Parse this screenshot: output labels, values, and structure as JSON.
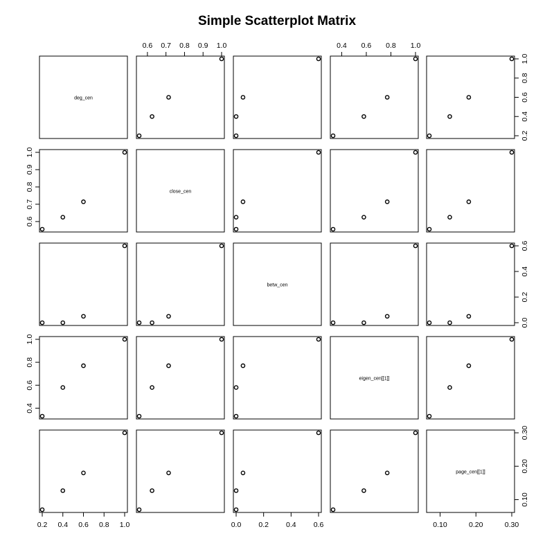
{
  "chart_data": {
    "type": "scatter-matrix",
    "title": "Simple Scatterplot Matrix",
    "variables": [
      {
        "name": "deg_cen",
        "values": [
          0.2,
          0.4,
          0.6,
          1.0
        ],
        "lim": [
          0.2,
          1.0
        ],
        "ticks": [
          0.2,
          0.4,
          0.6,
          0.8,
          1.0
        ],
        "tick_labels": [
          "0.2",
          "0.4",
          "0.6",
          "0.8",
          "1.0"
        ]
      },
      {
        "name": "close_cen",
        "values": [
          0.5556,
          0.625,
          0.7143,
          1.0
        ],
        "lim": [
          0.5556,
          1.0
        ],
        "ticks": [
          0.6,
          0.7,
          0.8,
          0.9,
          1.0
        ],
        "tick_labels": [
          "0.6",
          "0.7",
          "0.8",
          "0.9",
          "1.0"
        ]
      },
      {
        "name": "betw_cen",
        "values": [
          0.0,
          0.0,
          0.05,
          0.6
        ],
        "lim": [
          0.0,
          0.6
        ],
        "ticks": [
          0.0,
          0.2,
          0.4,
          0.6
        ],
        "tick_labels": [
          "0.0",
          "0.2",
          "0.4",
          "0.6"
        ]
      },
      {
        "name": "eigen_cen[[1]]",
        "values": [
          0.33,
          0.58,
          0.77,
          1.0
        ],
        "lim": [
          0.33,
          1.0
        ],
        "ticks": [
          0.4,
          0.6,
          0.8,
          1.0
        ],
        "tick_labels": [
          "0.4",
          "0.6",
          "0.8",
          "1.0"
        ]
      },
      {
        "name": "page_cen[[1]]",
        "values": [
          0.07,
          0.127,
          0.18,
          0.3
        ],
        "lim": [
          0.07,
          0.3
        ],
        "ticks": [
          0.1,
          0.2,
          0.3
        ],
        "tick_labels": [
          "0.10",
          "0.20",
          "0.30"
        ]
      }
    ],
    "axes": {
      "top": [
        1,
        3
      ],
      "right": [
        0,
        2,
        4
      ],
      "left": [
        1,
        3
      ],
      "bottom": [
        0,
        2,
        4
      ]
    },
    "grid": false,
    "legend": "none"
  }
}
